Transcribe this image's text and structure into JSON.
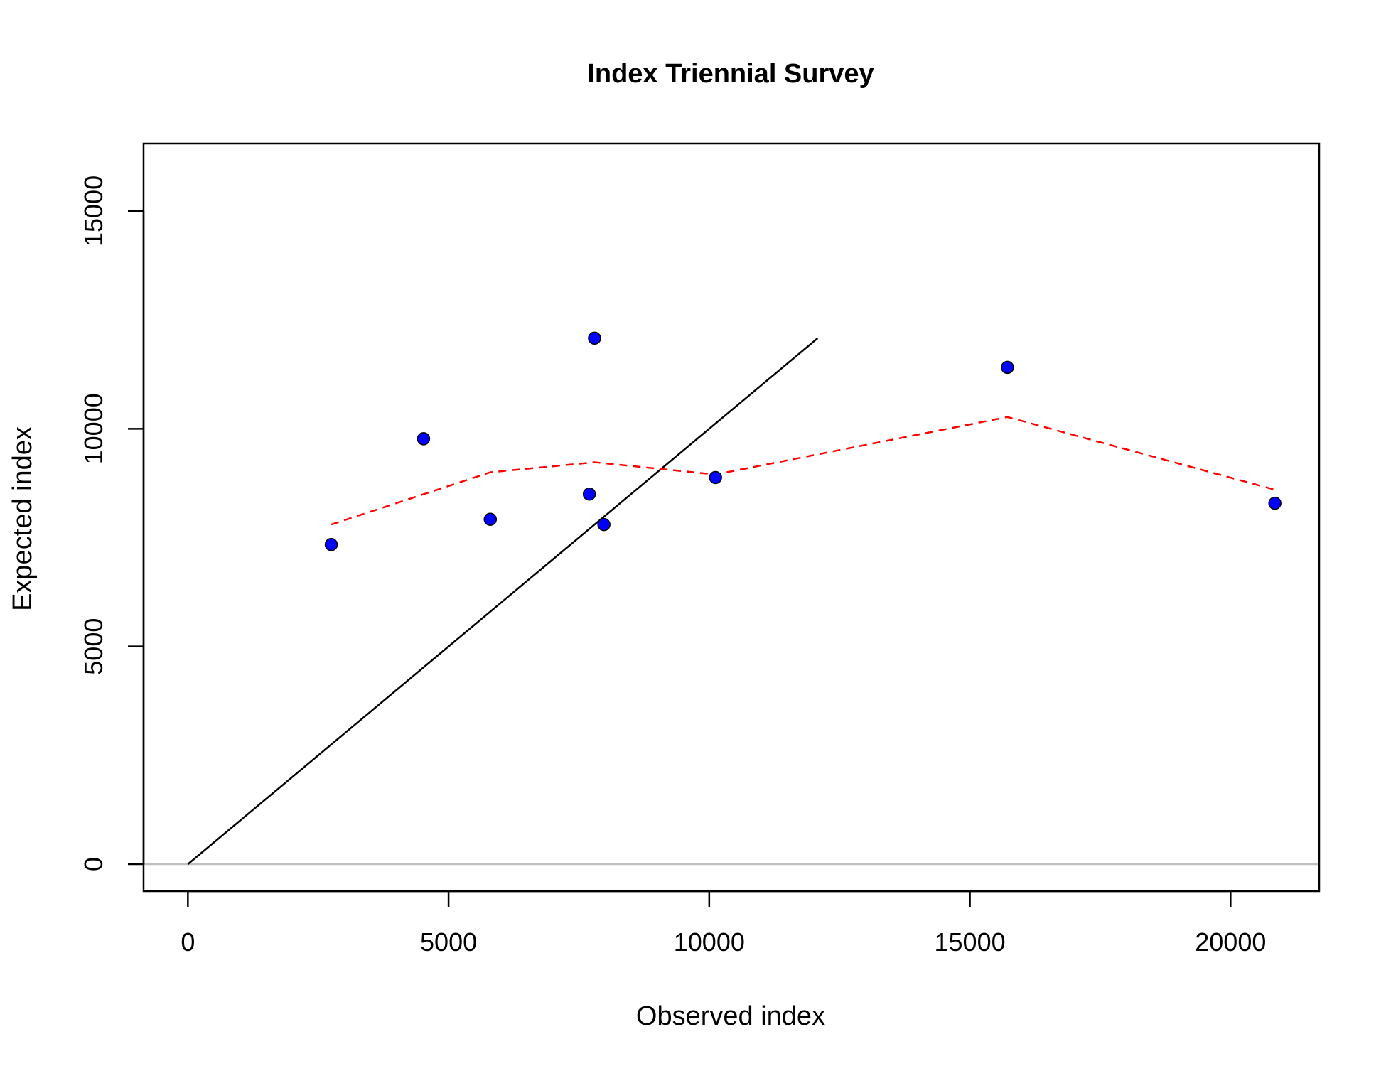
{
  "chart_data": {
    "type": "scatter",
    "title": "Index Triennial Survey",
    "xlabel": "Observed index",
    "ylabel": "Expected index",
    "xlim": [
      -850,
      21700
    ],
    "ylim": [
      -620,
      16550
    ],
    "xticks": [
      0,
      5000,
      10000,
      15000,
      20000
    ],
    "yticks": [
      0,
      5000,
      10000,
      15000
    ],
    "grid": false,
    "colors": {
      "points": "#0000ff",
      "point_outline": "#000000",
      "identity_line": "#000000",
      "smoother": "#ff0000",
      "zero_line": "#bebebe"
    },
    "points": {
      "x": [
        2750,
        4520,
        5800,
        7700,
        7800,
        7980,
        10120,
        15720,
        20850
      ],
      "y": [
        7340,
        9770,
        7920,
        8500,
        12080,
        7800,
        8880,
        11410,
        8290
      ]
    },
    "identity_line": {
      "x": [
        0,
        12080
      ],
      "y": [
        0,
        12080
      ]
    },
    "smoother": {
      "x": [
        2750,
        5800,
        7800,
        10120,
        15720,
        20850
      ],
      "y": [
        7800,
        9000,
        9230,
        8950,
        10270,
        8600
      ]
    },
    "zero_line_y": 0
  }
}
